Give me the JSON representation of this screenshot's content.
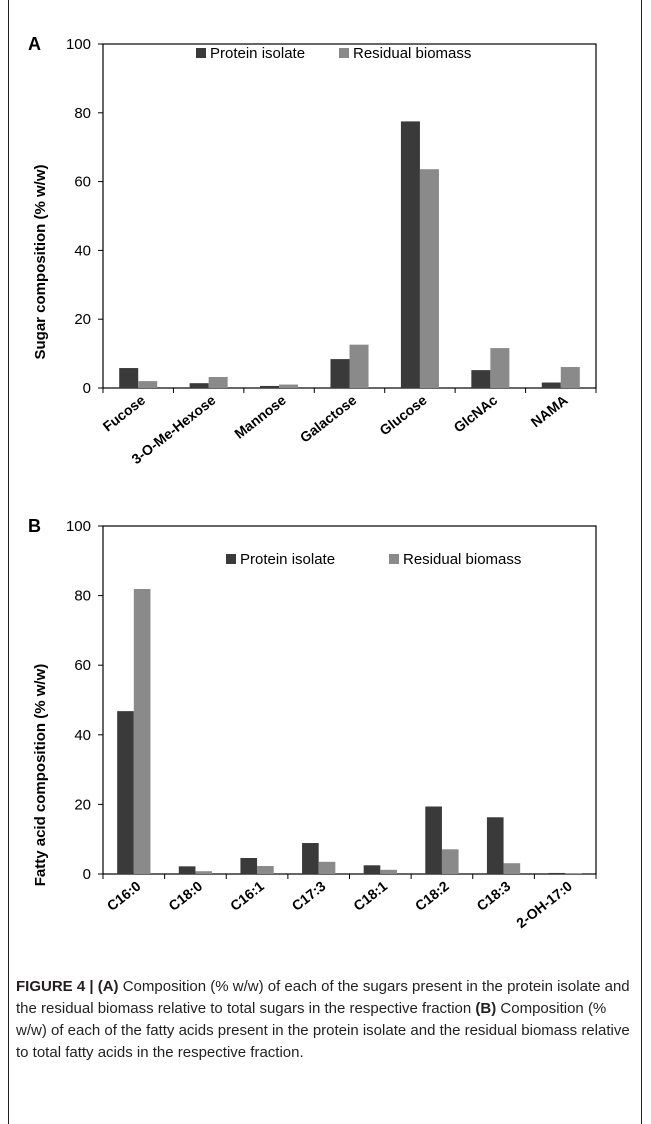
{
  "colors": {
    "protein": "#3a3a3a",
    "residual": "#8a8a8a",
    "axis": "#000000"
  },
  "chart_data": [
    {
      "type": "bar",
      "panel": "A",
      "ylabel": "Sugar composition (% w/w)",
      "ylim": [
        0,
        100
      ],
      "yticks": [
        0,
        20,
        40,
        60,
        80,
        100
      ],
      "legend_position": "top",
      "categories": [
        "Fucose",
        "3-O-Me-Hexose",
        "Mannose",
        "Galactose",
        "Glucose",
        "GlcNAc",
        "NAMA"
      ],
      "series": [
        {
          "name": "Protein isolate",
          "values": [
            5.8,
            1.4,
            0.6,
            8.4,
            77.5,
            5.2,
            1.6
          ]
        },
        {
          "name": "Residual biomass",
          "values": [
            2.0,
            3.2,
            1.0,
            12.6,
            63.6,
            11.6,
            6.1
          ]
        }
      ]
    },
    {
      "type": "bar",
      "panel": "B",
      "ylabel": "Fatty acid composition (% w/w)",
      "ylim": [
        0,
        100
      ],
      "yticks": [
        0,
        20,
        40,
        60,
        80,
        100
      ],
      "legend_position": "top",
      "categories": [
        "C16:0",
        "C18:0",
        "C16:1",
        "C17:3",
        "C18:1",
        "C18:2",
        "C18:3",
        "2-OH-17:0"
      ],
      "series": [
        {
          "name": "Protein isolate",
          "values": [
            46.8,
            2.2,
            4.6,
            8.9,
            2.5,
            19.4,
            16.3,
            0.3
          ]
        },
        {
          "name": "Residual biomass",
          "values": [
            81.9,
            0.8,
            2.3,
            3.5,
            1.2,
            7.1,
            3.1,
            0.2
          ]
        }
      ]
    }
  ],
  "caption": {
    "label": "FIGURE 4 | ",
    "a_tag": "(A)",
    "a_text": " Composition (% w/w) of each of the sugars present in the protein isolate and the residual biomass relative to total sugars in the respective fraction ",
    "b_tag": "(B)",
    "b_text": " Composition (% w/w) of each of the fatty acids present in the protein isolate and the residual biomass relative to total fatty acids in the respective fraction."
  }
}
